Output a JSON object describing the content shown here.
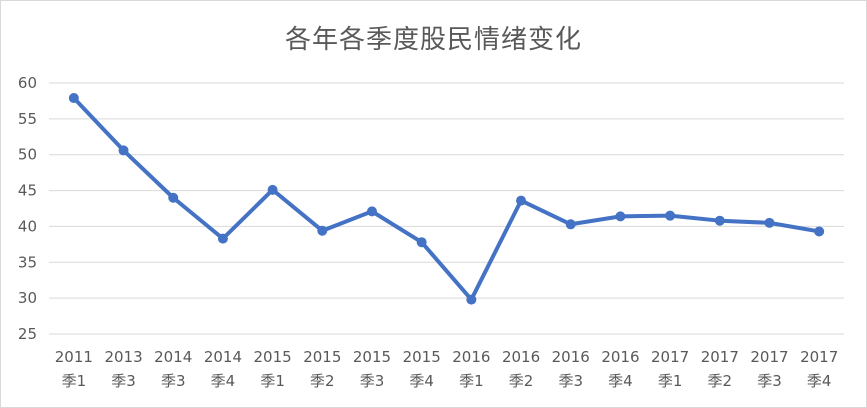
{
  "chart_data": {
    "type": "line",
    "title": "各年各季度股民情绪变化",
    "xlabel": "",
    "ylabel": "",
    "categories": [
      [
        "2011",
        "季1"
      ],
      [
        "2013",
        "季3"
      ],
      [
        "2014",
        "季3"
      ],
      [
        "2014",
        "季4"
      ],
      [
        "2015",
        "季1"
      ],
      [
        "2015",
        "季2"
      ],
      [
        "2015",
        "季3"
      ],
      [
        "2015",
        "季4"
      ],
      [
        "2016",
        "季1"
      ],
      [
        "2016",
        "季2"
      ],
      [
        "2016",
        "季3"
      ],
      [
        "2016",
        "季4"
      ],
      [
        "2017",
        "季1"
      ],
      [
        "2017",
        "季2"
      ],
      [
        "2017",
        "季3"
      ],
      [
        "2017",
        "季4"
      ]
    ],
    "series": [
      {
        "values": [
          57.9,
          50.6,
          44.0,
          38.3,
          45.1,
          39.4,
          42.1,
          37.8,
          29.8,
          43.6,
          40.3,
          41.4,
          41.5,
          40.8,
          40.5,
          39.3
        ]
      }
    ],
    "ylim": [
      25,
      60
    ],
    "yticks": [
      25,
      30,
      35,
      40,
      45,
      50,
      55,
      60
    ],
    "grid": true,
    "legend": "none",
    "colors": {
      "line": "#4472C4",
      "grid": "#d9d9d9",
      "text": "#595959"
    }
  }
}
